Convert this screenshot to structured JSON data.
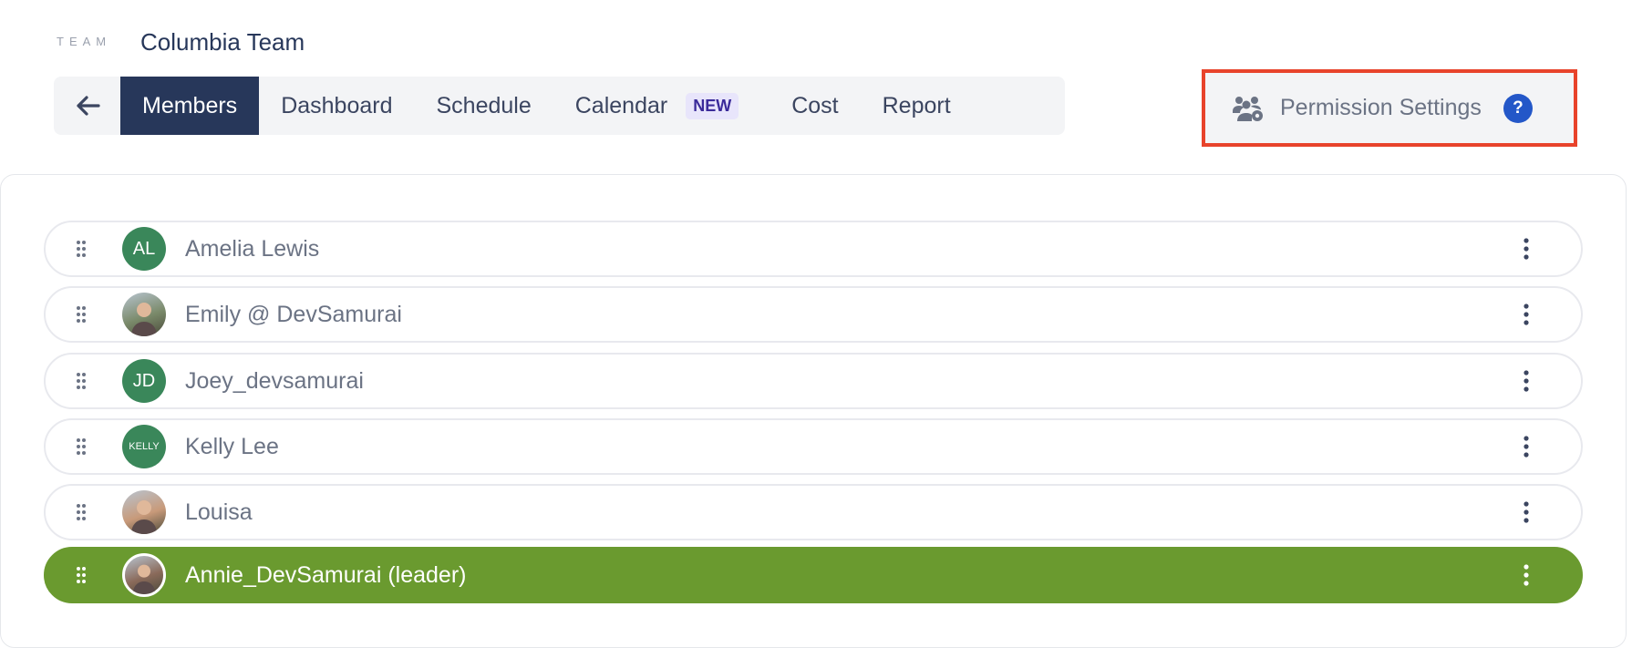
{
  "header": {
    "team_label": "TEAM",
    "team_name": "Columbia Team"
  },
  "tabs": [
    {
      "label": "Members",
      "active": true
    },
    {
      "label": "Dashboard"
    },
    {
      "label": "Schedule"
    },
    {
      "label": "Calendar",
      "badge": "NEW"
    },
    {
      "label": "Cost"
    },
    {
      "label": "Report"
    }
  ],
  "permission": {
    "label": "Permission Settings",
    "help": "?"
  },
  "members": [
    {
      "name": "Amelia Lewis",
      "initials": "AL",
      "avatar_color": "#3a875a"
    },
    {
      "name": "Emily @ DevSamurai",
      "photo": true,
      "avatar_color": "#7a8a6a"
    },
    {
      "name": "Joey_devsamurai",
      "initials": "JD",
      "avatar_color": "#3a875a"
    },
    {
      "name": "Kelly Lee",
      "initials": "KELLY",
      "avatar_color": "#3a875a"
    },
    {
      "name": "Louisa",
      "photo": true,
      "avatar_color": "#c89a7a"
    },
    {
      "name": "Annie_DevSamurai (leader)",
      "photo": true,
      "leader": true,
      "avatar_color": "#8a6a5a"
    }
  ],
  "colors": {
    "active_tab": "#27375a",
    "leader_row": "#6a9a2f",
    "highlight_border": "#e8432b",
    "help": "#2357c8"
  }
}
